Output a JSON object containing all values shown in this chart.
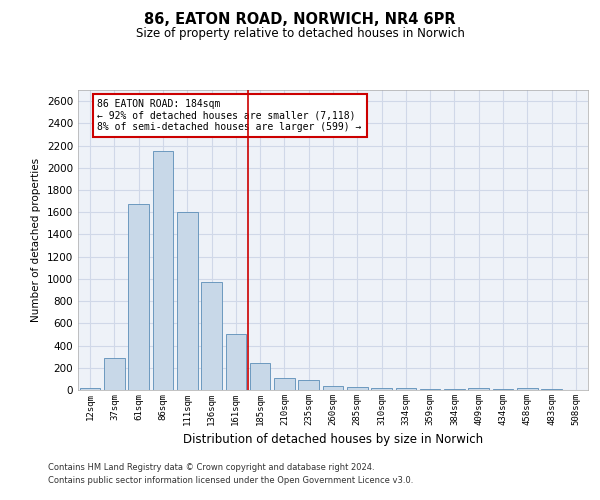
{
  "title": "86, EATON ROAD, NORWICH, NR4 6PR",
  "subtitle": "Size of property relative to detached houses in Norwich",
  "xlabel": "Distribution of detached houses by size in Norwich",
  "ylabel": "Number of detached properties",
  "bar_color": "#c8d8e8",
  "bar_edge_color": "#5b8db8",
  "marker_color": "#cc0000",
  "annotation_title": "86 EATON ROAD: 184sqm",
  "annotation_line1": "← 92% of detached houses are smaller (7,118)",
  "annotation_line2": "8% of semi-detached houses are larger (599) →",
  "annotation_box_color": "#cc0000",
  "categories": [
    "12sqm",
    "37sqm",
    "61sqm",
    "86sqm",
    "111sqm",
    "136sqm",
    "161sqm",
    "185sqm",
    "210sqm",
    "235sqm",
    "260sqm",
    "285sqm",
    "310sqm",
    "334sqm",
    "359sqm",
    "384sqm",
    "409sqm",
    "434sqm",
    "458sqm",
    "483sqm",
    "508sqm"
  ],
  "values": [
    20,
    290,
    1670,
    2150,
    1600,
    970,
    500,
    240,
    110,
    90,
    40,
    30,
    20,
    15,
    10,
    10,
    15,
    5,
    15,
    10,
    0
  ],
  "ylim": [
    0,
    2700
  ],
  "yticks": [
    0,
    200,
    400,
    600,
    800,
    1000,
    1200,
    1400,
    1600,
    1800,
    2000,
    2200,
    2400,
    2600
  ],
  "grid_color": "#d0d8e8",
  "background_color": "#eef2f8",
  "footer1": "Contains HM Land Registry data © Crown copyright and database right 2024.",
  "footer2": "Contains public sector information licensed under the Open Government Licence v3.0."
}
